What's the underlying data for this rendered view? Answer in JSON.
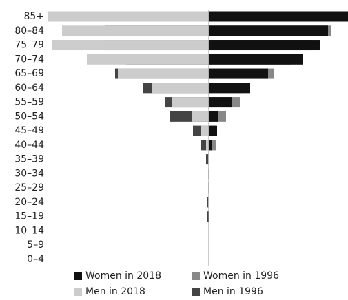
{
  "chart_data": {
    "type": "pyramid",
    "categories": [
      "85+",
      "80–84",
      "75–79",
      "70–74",
      "65–69",
      "60–64",
      "55–59",
      "50–54",
      "45–49",
      "40–44",
      "35–39",
      "30–34",
      "25–29",
      "20–24",
      "15–19",
      "10–14",
      "5–9",
      "0–4"
    ],
    "series": [
      {
        "name": "Women in 2018",
        "color": "#111111",
        "side": "right",
        "values": [
          202,
          173,
          162,
          137,
          86,
          60,
          34,
          14,
          12,
          4,
          0,
          0,
          0,
          0,
          0,
          0,
          0,
          0
        ]
      },
      {
        "name": "Women in 1996",
        "color": "#888888",
        "side": "right",
        "values": [
          100,
          177,
          150,
          120,
          94,
          50,
          46,
          25,
          10,
          10,
          1,
          0,
          0,
          0,
          0,
          0,
          0,
          0
        ]
      },
      {
        "name": "Men in 2018",
        "color": "#cccccc",
        "side": "left",
        "values": [
          233,
          213,
          228,
          177,
          132,
          83,
          53,
          24,
          12,
          4,
          1,
          1,
          1,
          1,
          0,
          0,
          0,
          0
        ]
      },
      {
        "name": "Men in 1996",
        "color": "#444444",
        "side": "left",
        "values": [
          100,
          150,
          150,
          120,
          136,
          95,
          64,
          56,
          23,
          11,
          4,
          1,
          1,
          2,
          2,
          0,
          0,
          0
        ]
      }
    ]
  }
}
